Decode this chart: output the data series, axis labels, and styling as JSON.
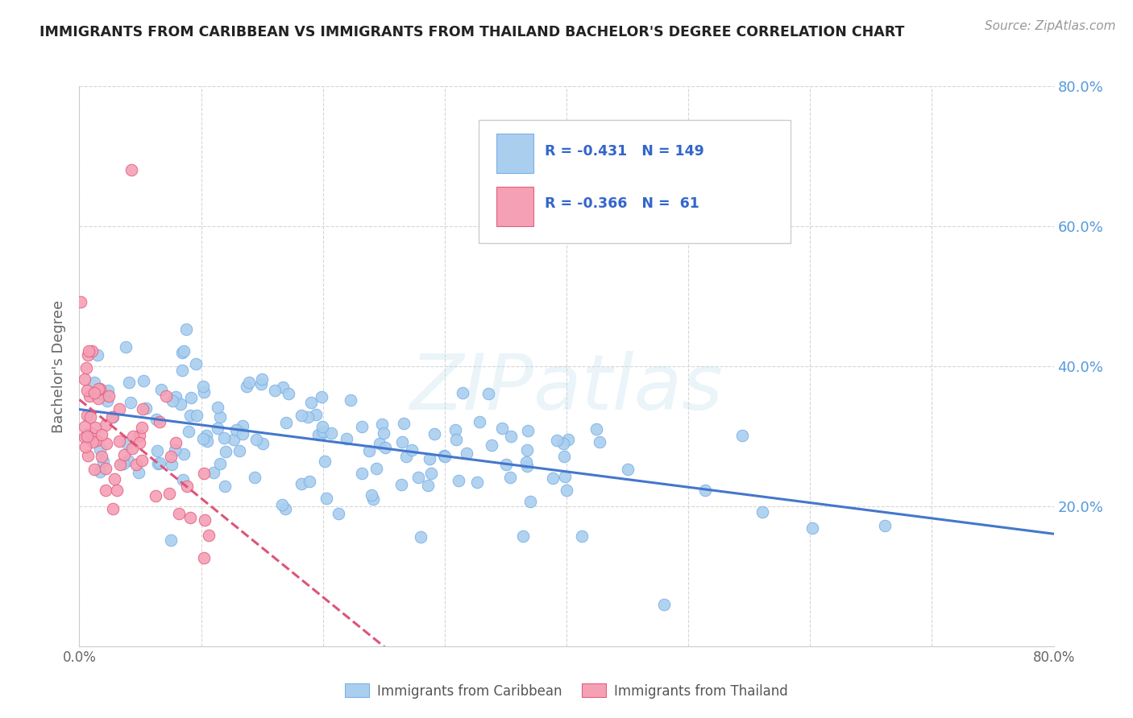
{
  "title": "IMMIGRANTS FROM CARIBBEAN VS IMMIGRANTS FROM THAILAND BACHELOR'S DEGREE CORRELATION CHART",
  "source": "Source: ZipAtlas.com",
  "ylabel": "Bachelor's Degree",
  "xlim": [
    0.0,
    0.8
  ],
  "ylim": [
    0.0,
    0.8
  ],
  "yticks_right": [
    0.2,
    0.4,
    0.6,
    0.8
  ],
  "ytick_labels_right": [
    "20.0%",
    "40.0%",
    "60.0%",
    "80.0%"
  ],
  "caribbean_color": "#aacfee",
  "caribbean_edge": "#7aafe8",
  "thailand_color": "#f5a0b5",
  "thailand_edge": "#e06080",
  "trend_caribbean_color": "#4477cc",
  "trend_thailand_color": "#dd5577",
  "caribbean_R": -0.431,
  "caribbean_N": 149,
  "thailand_R": -0.366,
  "thailand_N": 61,
  "watermark": "ZIPatlas",
  "background_color": "#ffffff",
  "grid_color": "#cccccc",
  "title_color": "#222222",
  "right_axis_color": "#5599dd",
  "legend_label_caribbean": "Immigrants from Caribbean",
  "legend_label_thailand": "Immigrants from Thailand"
}
